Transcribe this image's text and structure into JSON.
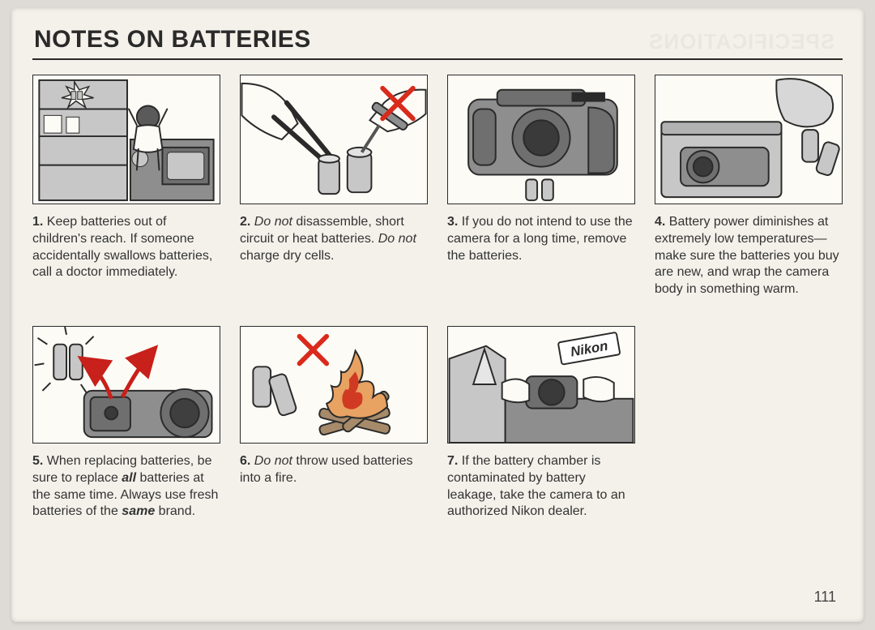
{
  "title": "NOTES ON BATTERIES",
  "page_number": "111",
  "colors": {
    "paper": "#f4f1ea",
    "ink": "#2a2a2a",
    "text": "#333333",
    "red_x": "#d92a1c",
    "red_arrow": "#c8201a",
    "flame_red": "#d03a22",
    "flame_orange": "#e8a262",
    "grey_fill": "#c7c7c7",
    "grey_dark": "#8e8e8e",
    "nikon_box": "#ffffff"
  },
  "items": {
    "i1": {
      "num": "1.",
      "segments": [
        {
          "t": "Keep batteries out of children's reach. If someone accidentally swallows batteries, call a doctor immediately."
        }
      ]
    },
    "i2": {
      "num": "2.",
      "segments": [
        {
          "t": "Do not",
          "cls": "em"
        },
        {
          "t": " disassemble, short circuit or heat batteries. "
        },
        {
          "t": "Do not",
          "cls": "em"
        },
        {
          "t": " charge dry cells."
        }
      ]
    },
    "i3": {
      "num": "3.",
      "segments": [
        {
          "t": "If you do not intend to use the camera for a long time, remove the batteries."
        }
      ]
    },
    "i4": {
      "num": "4.",
      "segments": [
        {
          "t": "Battery power diminishes at extremely low temperatures—make sure the batteries you buy are new, and wrap the camera body in something warm."
        }
      ]
    },
    "i5": {
      "num": "5.",
      "segments": [
        {
          "t": "When replacing batteries, be sure to replace "
        },
        {
          "t": "all",
          "cls": "embold"
        },
        {
          "t": " batteries at the same time. Always use fresh batteries of the "
        },
        {
          "t": "same",
          "cls": "embold"
        },
        {
          "t": " brand."
        }
      ]
    },
    "i6": {
      "num": "6.",
      "segments": [
        {
          "t": "Do not",
          "cls": "em"
        },
        {
          "t": " throw used batteries into a fire."
        }
      ]
    },
    "i7": {
      "num": "7.",
      "segments": [
        {
          "t": "If the battery chamber is contaminated by battery leakage, take the camera to an authorized Nikon dealer."
        }
      ]
    },
    "nikon_label": "Nikon"
  }
}
